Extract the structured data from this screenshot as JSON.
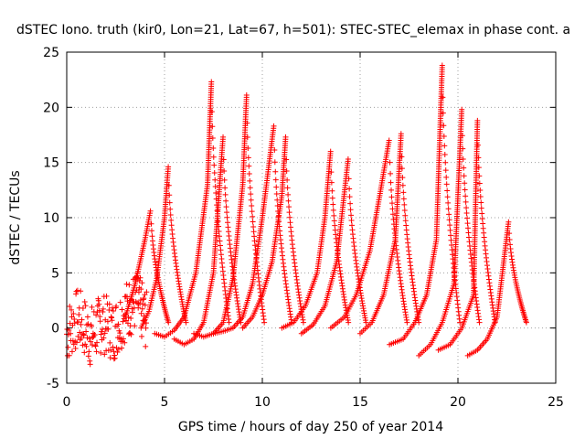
{
  "chart_data": {
    "type": "scatter",
    "title": "dSTEC Iono. truth (kir0, Lon=21, Lat=67, h=501): STEC-STEC_elemax in phase cont. a",
    "xlabel": "GPS time / hours of day 250 of year 2014",
    "ylabel": "dSTEC  / TECUs",
    "xlim": [
      0,
      25
    ],
    "ylim": [
      -5,
      25
    ],
    "x_ticks": [
      "0",
      "5",
      "10",
      "15",
      "20",
      "25"
    ],
    "y_ticks": [
      "-5",
      "0",
      "5",
      "10",
      "15",
      "20",
      "25"
    ],
    "grid": true,
    "legend": "none",
    "marker": "plus",
    "color": "#ff0000",
    "series": [
      {
        "peaks": [
          [
            0.0,
            -0.5
          ],
          [
            0.6,
            1.0
          ],
          [
            1.2,
            -0.8
          ],
          [
            1.8,
            0.5
          ],
          [
            2.4,
            -0.3
          ],
          [
            3.0,
            1.5
          ],
          [
            3.6,
            2.5
          ],
          [
            4.1,
            0.5
          ]
        ]
      },
      {
        "arcs": [
          {
            "x": [
              3.0,
              3.5,
              4.0,
              4.3
            ],
            "y": [
              1.0,
              4.0,
              8.0,
              10.8
            ]
          },
          {
            "x": [
              3.8,
              4.2,
              4.6,
              5.0,
              5.2
            ],
            "y": [
              0.0,
              1.5,
              4.5,
              10.0,
              14.8
            ]
          },
          {
            "x": [
              4.5,
              5.0,
              5.5,
              6.0,
              6.6,
              7.2,
              7.4
            ],
            "y": [
              -0.5,
              -0.8,
              -0.2,
              1.0,
              5.0,
              13.0,
              22.5
            ]
          },
          {
            "x": [
              5.5,
              6.0,
              6.5,
              7.0,
              7.5,
              8.0
            ],
            "y": [
              -1.0,
              -1.5,
              -1.0,
              0.5,
              5.0,
              17.5
            ]
          },
          {
            "x": [
              6.5,
              7.0,
              7.5,
              8.0,
              8.5,
              9.0,
              9.2
            ],
            "y": [
              -0.5,
              -0.8,
              -0.5,
              0.5,
              4.5,
              13.0,
              21.3
            ]
          },
          {
            "x": [
              7.5,
              8.0,
              8.5,
              9.0,
              9.5,
              10.0,
              10.6
            ],
            "y": [
              -0.5,
              -0.3,
              0.0,
              1.0,
              4.0,
              10.0,
              18.5
            ]
          },
          {
            "x": [
              9.0,
              9.5,
              10.0,
              10.5,
              11.0,
              11.2
            ],
            "y": [
              0.0,
              1.0,
              3.0,
              6.0,
              12.0,
              17.5
            ]
          },
          {
            "x": [
              11.0,
              11.6,
              12.2,
              12.8,
              13.2,
              13.5
            ],
            "y": [
              0.0,
              0.5,
              2.0,
              5.0,
              10.0,
              16.2
            ]
          },
          {
            "x": [
              12.0,
              12.6,
              13.2,
              13.8,
              14.4
            ],
            "y": [
              -0.5,
              0.3,
              2.0,
              6.0,
              15.5
            ]
          },
          {
            "x": [
              13.5,
              14.2,
              14.8,
              15.5,
              16.0,
              16.5
            ],
            "y": [
              0.0,
              1.0,
              3.0,
              7.0,
              12.0,
              17.2
            ]
          },
          {
            "x": [
              15.0,
              15.6,
              16.2,
              16.8,
              17.1
            ],
            "y": [
              -0.5,
              0.5,
              3.0,
              8.0,
              17.8
            ]
          },
          {
            "x": [
              16.5,
              17.2,
              17.8,
              18.4,
              18.9,
              19.2
            ],
            "y": [
              -1.5,
              -1.0,
              0.5,
              3.0,
              8.0,
              24.0
            ]
          },
          {
            "x": [
              18.0,
              18.6,
              19.2,
              19.8,
              20.2
            ],
            "y": [
              -2.5,
              -1.5,
              0.5,
              4.0,
              20.0
            ]
          },
          {
            "x": [
              19.0,
              19.6,
              20.2,
              20.8,
              21.0
            ],
            "y": [
              -2.0,
              -1.5,
              0.0,
              3.0,
              19.0
            ]
          },
          {
            "x": [
              20.5,
              21.0,
              21.5,
              22.0,
              22.6
            ],
            "y": [
              -2.5,
              -2.0,
              -1.0,
              1.0,
              9.8
            ]
          }
        ]
      }
    ]
  }
}
